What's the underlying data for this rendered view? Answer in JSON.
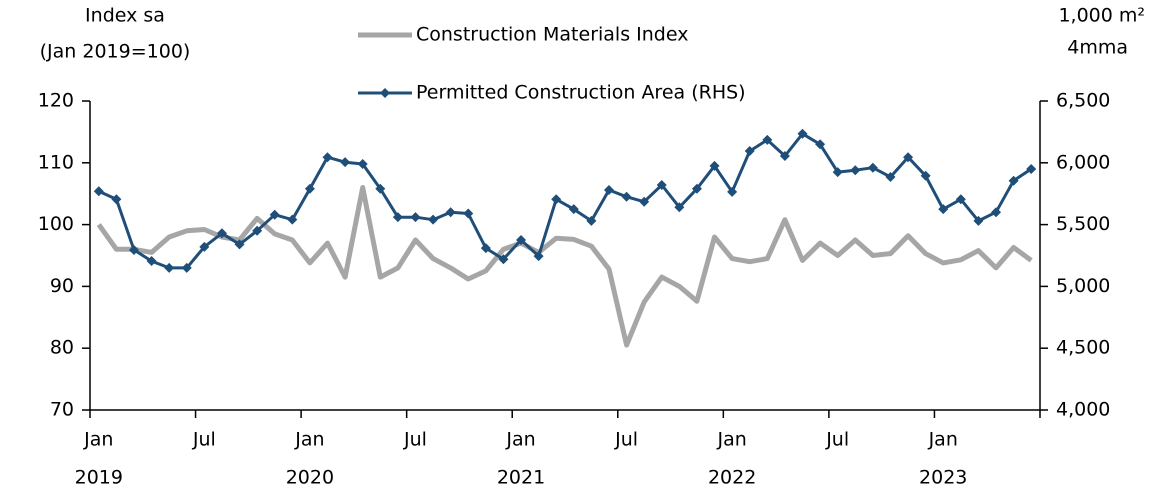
{
  "chart_data": {
    "type": "line",
    "y_label": [
      "Index sa",
      "(Jan 2019=100)"
    ],
    "y2_label": [
      "1,000 m²",
      "4mma"
    ],
    "categories": [
      "Jan",
      null,
      null,
      null,
      null,
      null,
      "Jul",
      null,
      null,
      null,
      null,
      null,
      "Jan",
      null,
      null,
      null,
      null,
      null,
      "Jul",
      null,
      null,
      null,
      null,
      null,
      "Jan",
      null,
      null,
      null,
      null,
      null,
      "Jul",
      null,
      null,
      null,
      null,
      null,
      "Jan",
      null,
      null,
      null,
      null,
      null,
      "Jul",
      null,
      null,
      null,
      null,
      null,
      "Jan",
      null,
      null,
      null,
      null,
      null
    ],
    "category_years": [
      "2019",
      null,
      null,
      null,
      null,
      null,
      null,
      null,
      null,
      null,
      null,
      null,
      "2020",
      null,
      null,
      null,
      null,
      null,
      null,
      null,
      null,
      null,
      null,
      null,
      "2021",
      null,
      null,
      null,
      null,
      null,
      null,
      null,
      null,
      null,
      null,
      null,
      "2022",
      null,
      null,
      null,
      null,
      null,
      null,
      null,
      null,
      null,
      null,
      null,
      "2023",
      null,
      null,
      null,
      null,
      null
    ],
    "ylim": [
      70,
      120
    ],
    "yticks": [
      70,
      80,
      90,
      100,
      110,
      120
    ],
    "y2lim": [
      4000,
      6500
    ],
    "y2ticks": [
      {
        "value": 4000,
        "label": "4,000"
      },
      {
        "value": 4500,
        "label": "4,500"
      },
      {
        "value": 5000,
        "label": "5,000"
      },
      {
        "value": 5500,
        "label": "5,500"
      },
      {
        "value": 6000,
        "label": "6,000"
      },
      {
        "value": 6500,
        "label": "6,500"
      }
    ],
    "grid": false,
    "series": [
      {
        "name": "Construction Materials Index",
        "color": "#a6a6a6",
        "marker": "none",
        "values": [
          100,
          96,
          96,
          95.5,
          98,
          99,
          99.2,
          98,
          97.5,
          101,
          98.5,
          97.5,
          93.8,
          97,
          91.5,
          106,
          91.5,
          93,
          97.5,
          94.5,
          93,
          91.2,
          92.5,
          96,
          97,
          95.5,
          97.8,
          97.6,
          96.5,
          92.8,
          80.5,
          87.5,
          91.5,
          90,
          87.6,
          98,
          94.5,
          94,
          94.5,
          100.8,
          94.2,
          97,
          95,
          97.5,
          95,
          95.3,
          98.2,
          95.3,
          93.8,
          94.3,
          95.8,
          93,
          96.3,
          94.2
        ]
      },
      {
        "name": "Permitted Construction Area (RHS)",
        "color": "#1f4e79",
        "marker": "diamond",
        "axis": "y2",
        "values": [
          5770,
          5705,
          5295,
          5205,
          5150,
          5150,
          5320,
          5430,
          5340,
          5450,
          5580,
          5540,
          5790,
          6045,
          6005,
          5990,
          5790,
          5560,
          5560,
          5540,
          5600,
          5590,
          5310,
          5220,
          5375,
          5245,
          5705,
          5625,
          5530,
          5780,
          5725,
          5685,
          5820,
          5640,
          5790,
          5975,
          5765,
          6095,
          6185,
          6055,
          6235,
          6150,
          5925,
          5940,
          5960,
          5885,
          6045,
          5895,
          5625,
          5705,
          5530,
          5600,
          5855,
          5950
        ]
      }
    ]
  }
}
